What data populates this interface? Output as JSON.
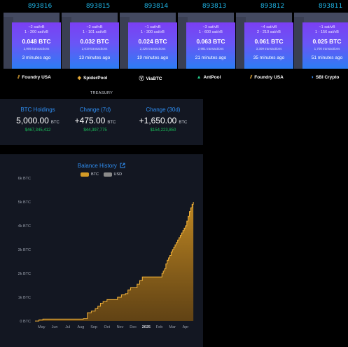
{
  "blocks": [
    {
      "height": "893816",
      "fee_range": "~2 sat/vB",
      "fee_span": "1 - 200 sat/vB",
      "total": "0.048 BTC",
      "tx_count": "2,905 transactions",
      "ago": "3 minutes ago",
      "pool": "Foundry USA",
      "pool_icon": "foundry-icon"
    },
    {
      "height": "893815",
      "fee_range": "~2 sat/vB",
      "fee_span": "1 - 101 sat/vB",
      "total": "0.032 BTC",
      "tx_count": "2,619 transactions",
      "ago": "13 minutes ago",
      "pool": "SpiderPool",
      "pool_icon": "spiderpool-icon"
    },
    {
      "height": "893814",
      "fee_range": "~1 sat/vB",
      "fee_span": "1 - 300 sat/vB",
      "total": "0.024 BTC",
      "tx_count": "2,326 transactions",
      "ago": "19 minutes ago",
      "pool": "ViaBTC",
      "pool_icon": "viabtc-icon"
    },
    {
      "height": "893813",
      "fee_range": "~3 sat/vB",
      "fee_span": "1 - 600 sat/vB",
      "total": "0.063 BTC",
      "tx_count": "2,981 transactions",
      "ago": "21 minutes ago",
      "pool": "AntPool",
      "pool_icon": "antpool-icon"
    },
    {
      "height": "893812",
      "fee_range": "~4 sat/vB",
      "fee_span": "2 - 210 sat/vB",
      "total": "0.061 BTC",
      "tx_count": "3,309 transactions",
      "ago": "35 minutes ago",
      "pool": "Foundry USA",
      "pool_icon": "foundry-icon"
    },
    {
      "height": "893811",
      "fee_range": "~1 sat/vB",
      "fee_span": "1 - 156 sat/vB",
      "total": "0.025 BTC",
      "tx_count": "1,700 transactions",
      "ago": "51 minutes ago",
      "pool": "SBI Crypto",
      "pool_icon": "sbi-icon"
    }
  ],
  "treasury_label": "TREASURY",
  "stats": [
    {
      "title": "BTC Holdings",
      "value": "5,000.00",
      "unit": "BTC",
      "usd": "$467,345,412"
    },
    {
      "title": "Change (7d)",
      "value": "+475.00",
      "unit": "BTC",
      "usd": "$44,397,775"
    },
    {
      "title": "Change (30d)",
      "value": "+1,650.00",
      "unit": "BTC",
      "usd": "$154,223,850"
    }
  ],
  "chart_header": {
    "title": "Balance History",
    "link_icon": "external-link-icon"
  },
  "colors": {
    "accent": "#2f8ef2",
    "btc_series": "#d39a26",
    "usd_series": "#8a8a8a",
    "positive": "#19c25a",
    "block_top": "#7b3ff3",
    "block_bottom": "#2c7df4"
  },
  "chart_data": {
    "type": "area",
    "title": "Balance History",
    "legend": [
      "BTC",
      "USD"
    ],
    "legend_placement": "top-center",
    "y_ticks": [
      "0 BTC",
      "1k BTC",
      "2k BTC",
      "3k BTC",
      "4k BTC",
      "5k BTC",
      "6k BTC"
    ],
    "ylim": [
      0,
      6000
    ],
    "x_ticks": [
      "May",
      "Jun",
      "Jul",
      "Aug",
      "Sep",
      "Oct",
      "Nov",
      "Dec",
      "2025",
      "Feb",
      "Mar",
      "Apr"
    ],
    "x_tick_pos": [
      0.5,
      1.5,
      2.5,
      3.5,
      4.5,
      5.5,
      6.5,
      7.5,
      8.5,
      9.5,
      10.5,
      11.5
    ],
    "xlim": [
      0,
      12.2
    ],
    "grid": false,
    "series": [
      {
        "name": "BTC",
        "x": [
          0,
          0.3,
          0.6,
          1.0,
          3.7,
          4.0,
          4.3,
          4.6,
          4.8,
          5.0,
          5.2,
          5.5,
          6.3,
          6.6,
          6.9,
          7.1,
          7.3,
          7.8,
          8.0,
          8.2,
          9.7,
          9.8,
          9.9,
          10.0,
          10.1,
          10.2,
          10.3,
          10.4,
          10.5,
          10.6,
          10.7,
          10.8,
          10.9,
          11.0,
          11.1,
          11.2,
          11.3,
          11.4,
          11.5,
          11.6,
          11.7,
          11.8,
          11.9,
          12.0,
          12.1
        ],
        "y": [
          0,
          50,
          80,
          80,
          100,
          350,
          420,
          520,
          620,
          750,
          820,
          900,
          1000,
          1100,
          1150,
          1300,
          1400,
          1550,
          1700,
          1850,
          2000,
          2100,
          2200,
          2400,
          2550,
          2650,
          2750,
          2900,
          3000,
          3100,
          3200,
          3300,
          3400,
          3500,
          3600,
          3700,
          3800,
          3900,
          4000,
          4200,
          4400,
          4600,
          4750,
          4900,
          5000
        ]
      }
    ]
  }
}
